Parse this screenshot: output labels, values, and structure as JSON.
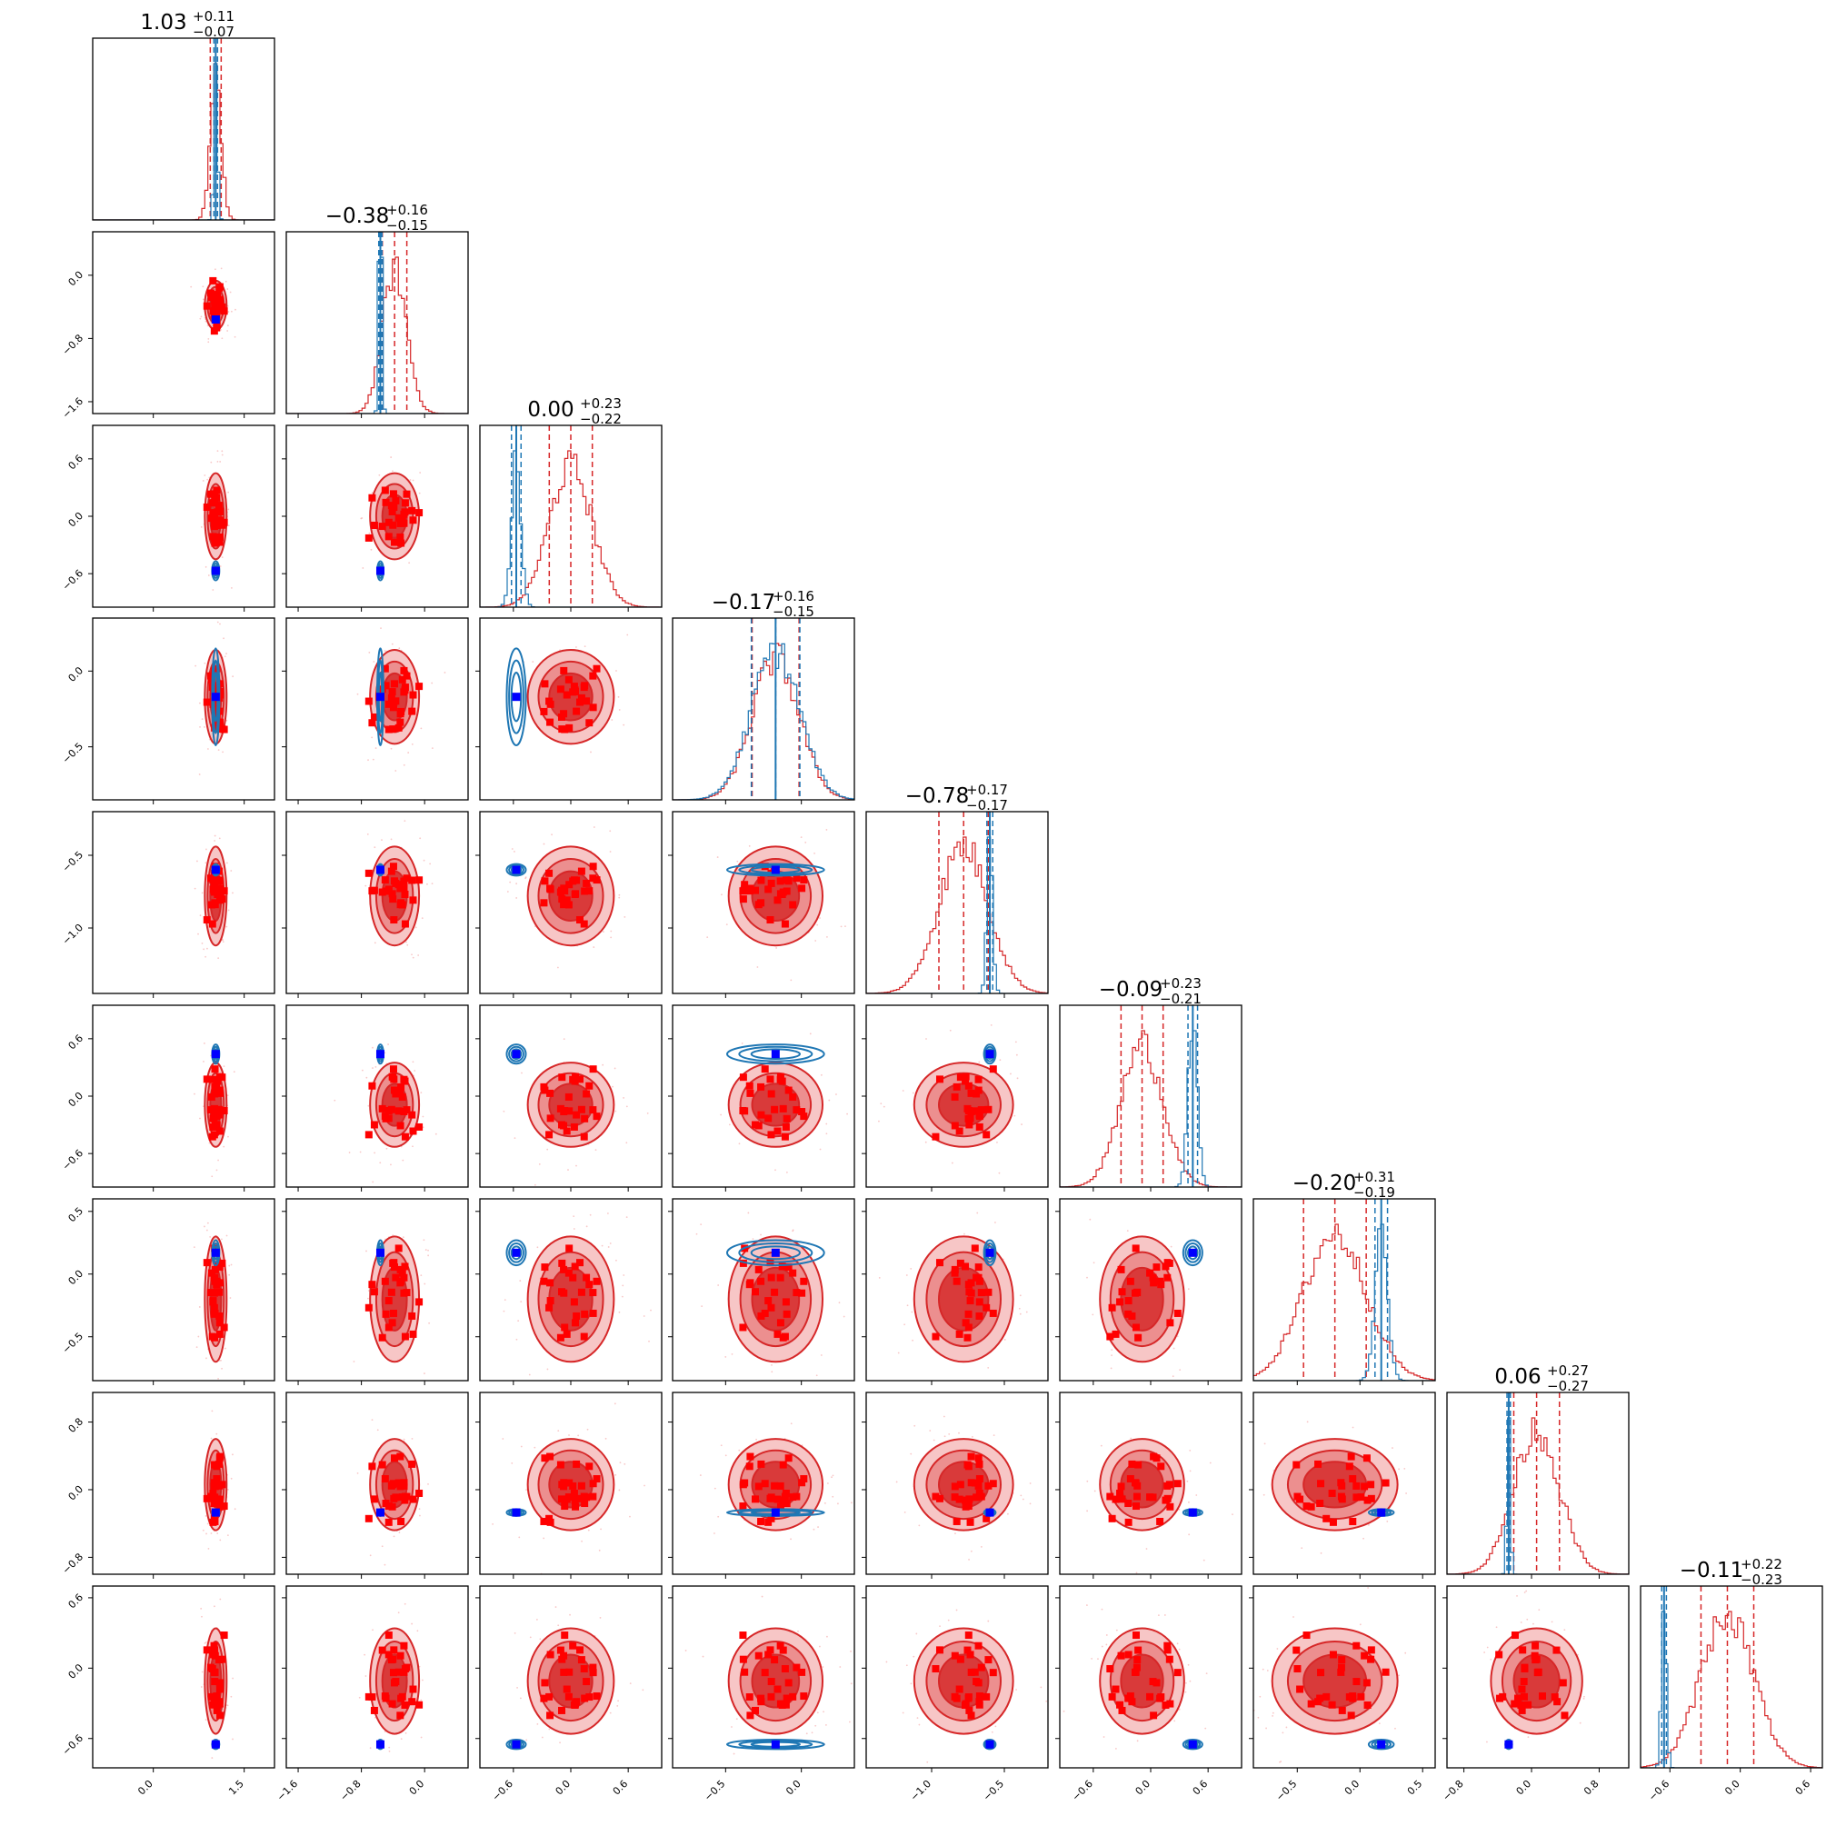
{
  "chart_data": {
    "type": "corner",
    "n_params": 9,
    "grid": false,
    "series": [
      {
        "name": "",
        "color": "#d62728",
        "mean": [
          1.03,
          -0.38,
          0.0,
          -0.17,
          -0.78,
          -0.09,
          -0.2,
          0.06,
          -0.11
        ],
        "sd": [
          0.09,
          0.155,
          0.225,
          0.155,
          0.17,
          0.22,
          0.25,
          0.27,
          0.225
        ]
      },
      {
        "name": "",
        "color": "#1f77b4",
        "mean": [
          1.03,
          -0.56,
          -0.57,
          -0.17,
          -0.6,
          0.44,
          0.17,
          -0.27,
          -0.65
        ],
        "sd": [
          0.03,
          0.02,
          0.05,
          0.16,
          0.02,
          0.05,
          0.05,
          0.02,
          0.02
        ]
      }
    ],
    "truth_color": "#0000ff",
    "marker_color": "#ff0000",
    "titles": [
      {
        "value": "1.03",
        "plus": "+0.11",
        "minus": "−0.07"
      },
      {
        "value": "−0.38",
        "plus": "+0.16",
        "minus": "−0.15"
      },
      {
        "value": "0.00",
        "plus": "+0.23",
        "minus": "−0.22"
      },
      {
        "value": "−0.17",
        "plus": "+0.16",
        "minus": "−0.15"
      },
      {
        "value": "−0.78",
        "plus": "+0.17",
        "minus": "−0.17"
      },
      {
        "value": "−0.09",
        "plus": "+0.23",
        "minus": "−0.21"
      },
      {
        "value": "−0.20",
        "plus": "+0.31",
        "minus": "−0.19"
      },
      {
        "value": "0.06",
        "plus": "+0.27",
        "minus": "−0.27"
      },
      {
        "value": "−0.11",
        "plus": "+0.22",
        "minus": "−0.23"
      }
    ],
    "axis_ranges": [
      [
        -1.0,
        2.0
      ],
      [
        -1.75,
        0.55
      ],
      [
        -0.95,
        0.95
      ],
      [
        -0.85,
        0.35
      ],
      [
        -1.45,
        -0.2
      ],
      [
        -0.95,
        0.95
      ],
      [
        -0.85,
        0.6
      ],
      [
        -1.0,
        1.15
      ],
      [
        -0.85,
        0.7
      ]
    ],
    "tick_values": [
      [
        0.0,
        1.5
      ],
      [
        -1.6,
        -0.8,
        0.0
      ],
      [
        -0.6,
        0.0,
        0.6
      ],
      [
        -0.5,
        0.0
      ],
      [
        -1.0,
        -0.5
      ],
      [
        -0.6,
        0.0,
        0.6
      ],
      [
        -0.5,
        0.0,
        0.5
      ],
      [
        -0.8,
        0.0,
        0.8
      ],
      [
        -0.6,
        0.0,
        0.6
      ]
    ],
    "tick_labels": [
      [
        "0.0",
        "1.5"
      ],
      [
        "−1.6",
        "−0.8",
        "0.0"
      ],
      [
        "−0.6",
        "0.0",
        "0.6"
      ],
      [
        "−0.5",
        "0.0"
      ],
      [
        "−1.0",
        "−0.5"
      ],
      [
        "−0.6",
        "0.0",
        "0.6"
      ],
      [
        "−0.5",
        "0.0",
        "0.5"
      ],
      [
        "−0.8",
        "0.0",
        "0.8"
      ],
      [
        "−0.6",
        "0.0",
        "0.6"
      ]
    ]
  }
}
